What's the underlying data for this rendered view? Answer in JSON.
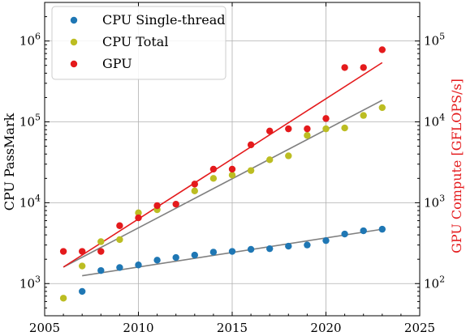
{
  "chart_data": {
    "type": "scatter",
    "title": "",
    "xlabel": "",
    "ylabel": "CPU PassMark",
    "y2label": "GPU Compute [GFLOPS/s]",
    "xlim": [
      2005,
      2025
    ],
    "ylim": [
      400,
      3000000
    ],
    "y2lim": [
      40,
      300000
    ],
    "yscale": "log",
    "y2scale": "log",
    "grid": true,
    "legend": "top-left",
    "x_ticks": [
      2005,
      2010,
      2015,
      2020,
      2025
    ],
    "y_ticks": [
      {
        "value": 1000,
        "base": "10",
        "exp": "3"
      },
      {
        "value": 10000,
        "base": "10",
        "exp": "4"
      },
      {
        "value": 100000,
        "base": "10",
        "exp": "5"
      },
      {
        "value": 1000000,
        "base": "10",
        "exp": "6"
      }
    ],
    "y2_ticks": [
      {
        "value": 100,
        "base": "10",
        "exp": "2"
      },
      {
        "value": 1000,
        "base": "10",
        "exp": "3"
      },
      {
        "value": 10000,
        "base": "10",
        "exp": "4"
      },
      {
        "value": 100000,
        "base": "10",
        "exp": "5"
      }
    ],
    "series": [
      {
        "name": "CPU Single-thread",
        "color": "#1f77b4",
        "axis": "left",
        "x": [
          2007,
          2008,
          2009,
          2010,
          2011,
          2012,
          2013,
          2014,
          2015,
          2016,
          2017,
          2018,
          2019,
          2020,
          2021,
          2022,
          2023
        ],
        "y": [
          800,
          1450,
          1580,
          1700,
          1950,
          2100,
          2250,
          2450,
          2500,
          2650,
          2700,
          2900,
          3000,
          3400,
          4100,
          4500,
          4700
        ],
        "trend": {
          "x": [
            2007,
            2023
          ],
          "y": [
            1250,
            4700
          ],
          "color": "#808080"
        }
      },
      {
        "name": "CPU Total",
        "color": "#bcbd22",
        "axis": "left",
        "x": [
          2006,
          2007,
          2008,
          2009,
          2010,
          2011,
          2013,
          2014,
          2015,
          2016,
          2017,
          2018,
          2019,
          2020,
          2021,
          2022,
          2023
        ],
        "y": [
          660,
          1650,
          3300,
          3500,
          7500,
          8200,
          14000,
          20000,
          22000,
          25000,
          34000,
          38000,
          68000,
          82000,
          84000,
          120000,
          150000
        ],
        "trend": {
          "x": [
            2006,
            2023
          ],
          "y": [
            1600,
            185000
          ],
          "color": "#808080"
        }
      },
      {
        "name": "GPU",
        "color": "#e41a1c",
        "axis": "right",
        "x": [
          2006,
          2007,
          2008,
          2009,
          2010,
          2011,
          2012,
          2013,
          2014,
          2015,
          2016,
          2017,
          2018,
          2019,
          2020,
          2021,
          2022,
          2023
        ],
        "y": [
          250,
          250,
          250,
          520,
          650,
          920,
          960,
          1700,
          2600,
          2600,
          5200,
          7700,
          8200,
          8200,
          11000,
          47000,
          47000,
          78000
        ],
        "trend": {
          "x": [
            2006,
            2023
          ],
          "y": [
            160,
            54000
          ],
          "color": "#e41a1c"
        }
      }
    ]
  }
}
